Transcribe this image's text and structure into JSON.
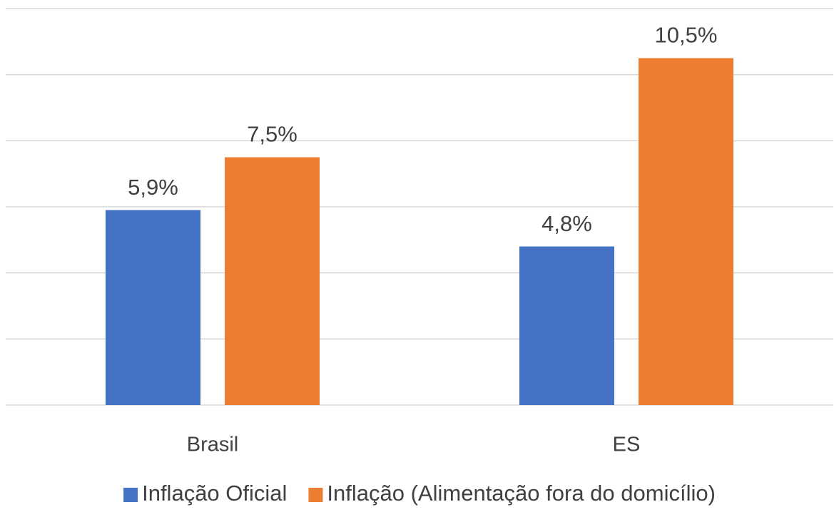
{
  "chart_data": {
    "type": "bar",
    "categories": [
      "Brasil",
      "ES"
    ],
    "series": [
      {
        "name": "Inflação Oficial",
        "color": "#4472c4",
        "values": [
          5.9,
          4.8
        ],
        "value_labels": [
          "5,9%",
          "4,8%"
        ]
      },
      {
        "name": "Inflação (Alimentação fora do domicílio)",
        "color": "#ed7d31",
        "values": [
          7.5,
          10.5
        ],
        "value_labels": [
          "7,5%",
          "10,5%"
        ]
      }
    ],
    "ylim": [
      0,
      12
    ],
    "yticks": [
      0,
      2,
      4,
      6,
      8,
      10,
      12
    ],
    "grid": true,
    "legend": "bottom"
  }
}
